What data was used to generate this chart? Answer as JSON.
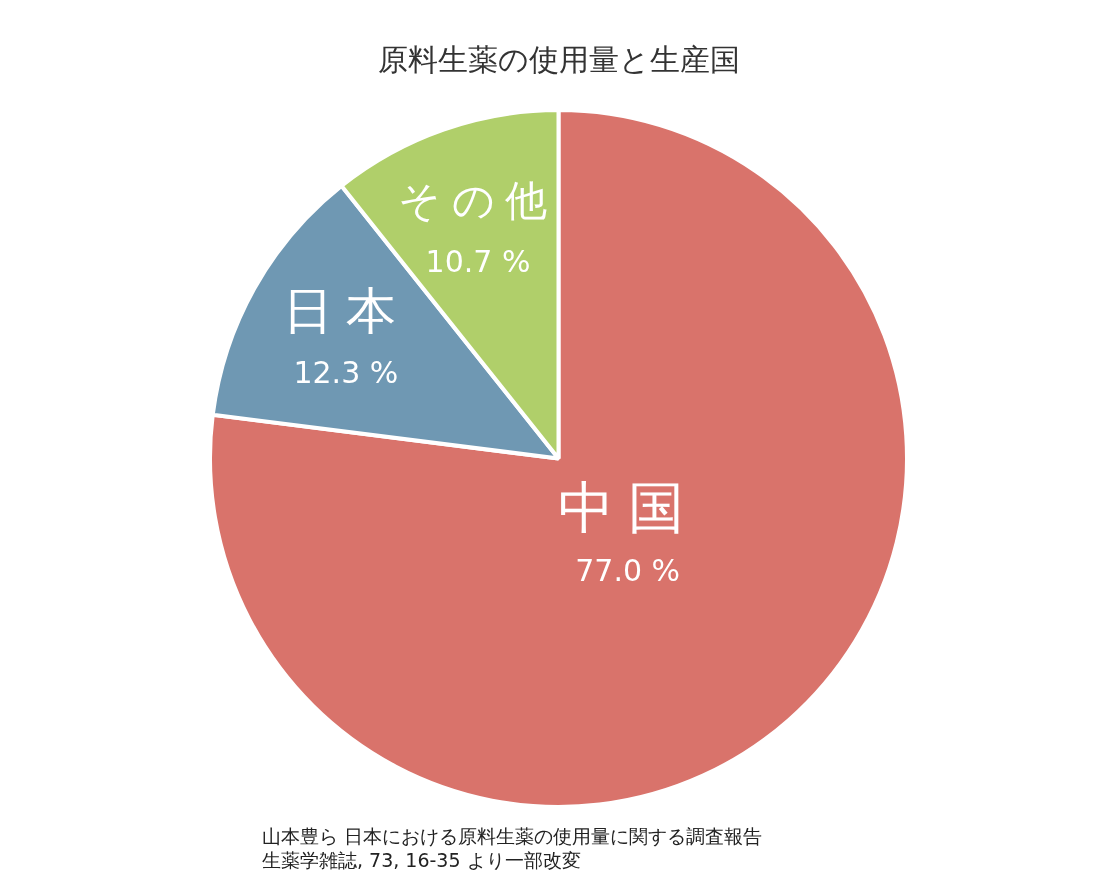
{
  "chart_data": {
    "type": "pie",
    "title": "原料生薬の使用量と生産国",
    "categories": [
      "中国",
      "日本",
      "その他"
    ],
    "values": [
      77.0,
      12.3,
      10.7
    ],
    "value_labels": [
      "77.0 %",
      "12.3 %",
      "10.7 %"
    ],
    "colors": [
      "#d9736b",
      "#6f98b3",
      "#b0cf6a"
    ],
    "legend": false,
    "annotations": [
      "山本豊ら 日本における原料生薬の使用量に関する調査報告",
      "生薬学雑誌, 73, 16-35 より一部改変"
    ]
  }
}
